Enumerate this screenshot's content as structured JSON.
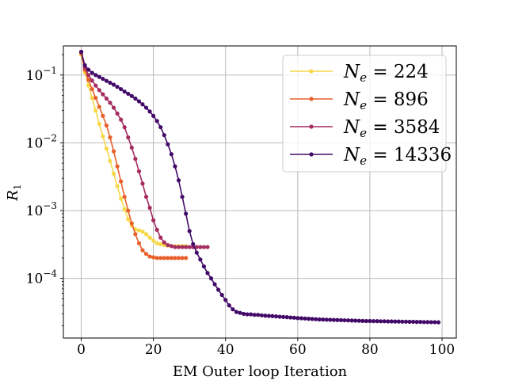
{
  "chart_data": {
    "type": "line",
    "title": "",
    "xlabel": "EM Outer loop Iteration",
    "ylabel": "R_1",
    "ylabel_main": "R",
    "ylabel_sub": "1",
    "xlim": [
      -4.95,
      103.95
    ],
    "ylim_log10": [
      -4.88,
      -0.57
    ],
    "yscale": "log",
    "grid": true,
    "legend_position": "upper-right",
    "x_ticks": [
      0,
      20,
      40,
      60,
      80,
      100
    ],
    "x_tick_labels": [
      "0",
      "20",
      "40",
      "60",
      "80",
      "100"
    ],
    "y_ticks_log10": [
      -1,
      -2,
      -3,
      -4
    ],
    "y_tick_bases": [
      "10",
      "10",
      "10",
      "10"
    ],
    "y_tick_exponents": [
      "−1",
      "−2",
      "−3",
      "−4"
    ],
    "series": [
      {
        "name": "N_e = 224",
        "legend_main": "N",
        "legend_sub": "e",
        "legend_value": "= 224",
        "color": "#f6d746",
        "x": [
          0,
          1,
          2,
          3,
          4,
          5,
          6,
          7,
          8,
          9,
          10,
          11,
          12,
          13,
          14,
          15,
          16,
          17,
          18,
          19,
          20,
          21,
          22,
          23,
          24,
          25,
          26,
          27,
          28,
          29
        ],
        "y": [
          0.2,
          0.11,
          0.07,
          0.046,
          0.03,
          0.019,
          0.0125,
          0.0082,
          0.0054,
          0.0035,
          0.0023,
          0.0015,
          0.00105,
          0.00075,
          0.0006,
          0.00053,
          0.00051,
          0.00049,
          0.00045,
          0.0004,
          0.00036,
          0.00033,
          0.00032,
          0.00031,
          0.000305,
          0.0003,
          0.0003,
          0.0003,
          0.0003,
          0.0003
        ]
      },
      {
        "name": "N_e = 896",
        "legend_main": "N",
        "legend_sub": "e",
        "legend_value": "= 896",
        "color": "#e8602b",
        "x": [
          0,
          1,
          2,
          3,
          4,
          5,
          6,
          7,
          8,
          9,
          10,
          11,
          12,
          13,
          14,
          15,
          16,
          17,
          18,
          19,
          20,
          21,
          22,
          23,
          24,
          25,
          26,
          27,
          28,
          29
        ],
        "y": [
          0.21,
          0.12,
          0.085,
          0.062,
          0.046,
          0.034,
          0.025,
          0.018,
          0.012,
          0.0075,
          0.0045,
          0.0027,
          0.0016,
          0.001,
          0.00065,
          0.00045,
          0.00033,
          0.00026,
          0.00023,
          0.00021,
          0.000205,
          0.0002,
          0.0002,
          0.0002,
          0.0002,
          0.0002,
          0.0002,
          0.0002,
          0.0002,
          0.0002
        ]
      },
      {
        "name": "N_e = 3584",
        "legend_main": "N",
        "legend_sub": "e",
        "legend_value": "= 3584",
        "color": "#a52c60",
        "x": [
          0,
          1,
          2,
          3,
          4,
          5,
          6,
          7,
          8,
          9,
          10,
          11,
          12,
          13,
          14,
          15,
          16,
          17,
          18,
          19,
          20,
          21,
          22,
          23,
          24,
          25,
          26,
          27,
          28,
          29,
          30,
          31,
          32,
          33,
          34,
          35
        ],
        "y": [
          0.22,
          0.13,
          0.1,
          0.083,
          0.07,
          0.06,
          0.052,
          0.045,
          0.039,
          0.033,
          0.027,
          0.022,
          0.017,
          0.012,
          0.0085,
          0.0058,
          0.0038,
          0.0025,
          0.0016,
          0.0011,
          0.00072,
          0.00052,
          0.0004,
          0.00034,
          0.00031,
          0.0003,
          0.00029,
          0.00029,
          0.00029,
          0.00029,
          0.00029,
          0.00029,
          0.00029,
          0.00029,
          0.00029,
          0.00029
        ]
      },
      {
        "name": "N_e = 14336",
        "legend_main": "N",
        "legend_sub": "e",
        "legend_value": "= 14336",
        "color": "#420a68",
        "x": [
          0,
          1,
          2,
          3,
          4,
          5,
          6,
          7,
          8,
          9,
          10,
          11,
          12,
          13,
          14,
          15,
          16,
          17,
          18,
          19,
          20,
          21,
          22,
          23,
          24,
          25,
          26,
          27,
          28,
          29,
          30,
          31,
          32,
          33,
          34,
          35,
          36,
          37,
          38,
          39,
          40,
          41,
          42,
          43,
          44,
          45,
          46,
          47,
          48,
          49,
          50,
          51,
          52,
          53,
          54,
          55,
          56,
          57,
          58,
          59,
          60,
          61,
          62,
          63,
          64,
          65,
          66,
          67,
          68,
          69,
          70,
          71,
          72,
          73,
          74,
          75,
          76,
          77,
          78,
          79,
          80,
          81,
          82,
          83,
          84,
          85,
          86,
          87,
          88,
          89,
          90,
          91,
          92,
          93,
          94,
          95,
          96,
          97,
          98,
          99
        ],
        "y": [
          0.22,
          0.14,
          0.12,
          0.108,
          0.1,
          0.094,
          0.088,
          0.082,
          0.077,
          0.072,
          0.067,
          0.062,
          0.057,
          0.053,
          0.049,
          0.045,
          0.041,
          0.037,
          0.033,
          0.029,
          0.025,
          0.021,
          0.017,
          0.013,
          0.0095,
          0.0068,
          0.0045,
          0.0028,
          0.0016,
          0.0009,
          0.0005,
          0.00032,
          0.00024,
          0.00019,
          0.00015,
          0.00012,
          0.0001,
          8.2e-05,
          6.8e-05,
          5.7e-05,
          4.8e-05,
          4e-05,
          3.5e-05,
          3.2e-05,
          3.1e-05,
          3e-05,
          2.95e-05,
          2.95e-05,
          2.9e-05,
          2.9e-05,
          2.85e-05,
          2.82e-05,
          2.8e-05,
          2.78e-05,
          2.75e-05,
          2.72e-05,
          2.7e-05,
          2.68e-05,
          2.65e-05,
          2.63e-05,
          2.6e-05,
          2.58e-05,
          2.56e-05,
          2.54e-05,
          2.52e-05,
          2.5e-05,
          2.48e-05,
          2.47e-05,
          2.46e-05,
          2.45e-05,
          2.44e-05,
          2.43e-05,
          2.42e-05,
          2.41e-05,
          2.4e-05,
          2.39e-05,
          2.38e-05,
          2.37e-05,
          2.36e-05,
          2.35e-05,
          2.35e-05,
          2.34e-05,
          2.34e-05,
          2.33e-05,
          2.33e-05,
          2.32e-05,
          2.32e-05,
          2.31e-05,
          2.31e-05,
          2.3e-05,
          2.3e-05,
          2.29e-05,
          2.29e-05,
          2.28e-05,
          2.28e-05,
          2.27e-05,
          2.27e-05,
          2.26e-05,
          2.26e-05,
          2.25e-05
        ]
      }
    ]
  }
}
